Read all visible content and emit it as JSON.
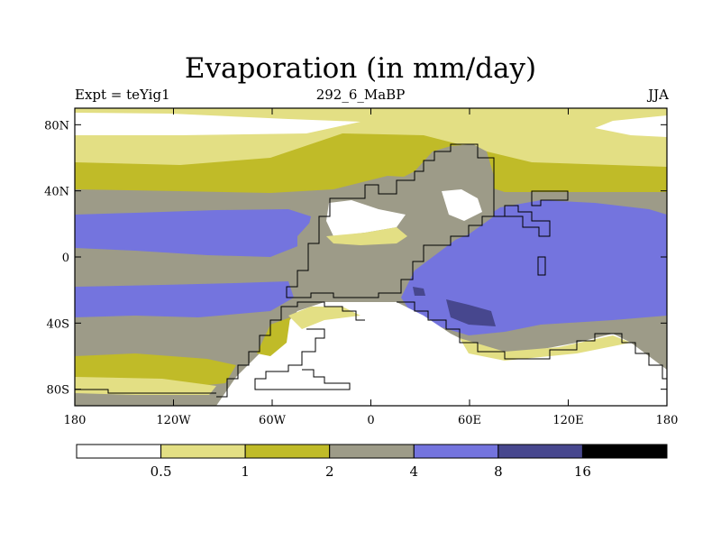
{
  "title": "Evaporation (in mm/day)",
  "left_string": "Expt = teYig1",
  "center_string": "292_6_MaBP",
  "right_string": "JJA",
  "map": {
    "lon_range": [
      -180,
      180
    ],
    "lat_range": [
      -90,
      90
    ],
    "x_ticks": [
      {
        "value": -180,
        "label": "180"
      },
      {
        "value": -120,
        "label": "120W"
      },
      {
        "value": -60,
        "label": "60W"
      },
      {
        "value": 0,
        "label": "0"
      },
      {
        "value": 60,
        "label": "60E"
      },
      {
        "value": 120,
        "label": "120E"
      },
      {
        "value": 180,
        "label": "180"
      }
    ],
    "y_ticks": [
      {
        "value": 80,
        "label": "80N"
      },
      {
        "value": 40,
        "label": "40N"
      },
      {
        "value": 0,
        "label": "0"
      },
      {
        "value": -40,
        "label": "40S"
      },
      {
        "value": -80,
        "label": "80S"
      }
    ]
  },
  "colorbar": {
    "levels": [
      "0.5",
      "1",
      "2",
      "4",
      "8",
      "16"
    ],
    "colors": [
      "#ffffff",
      "#e3df84",
      "#c0bb28",
      "#9d9b88",
      "#7474de",
      "#47478e",
      "#000000"
    ]
  }
}
